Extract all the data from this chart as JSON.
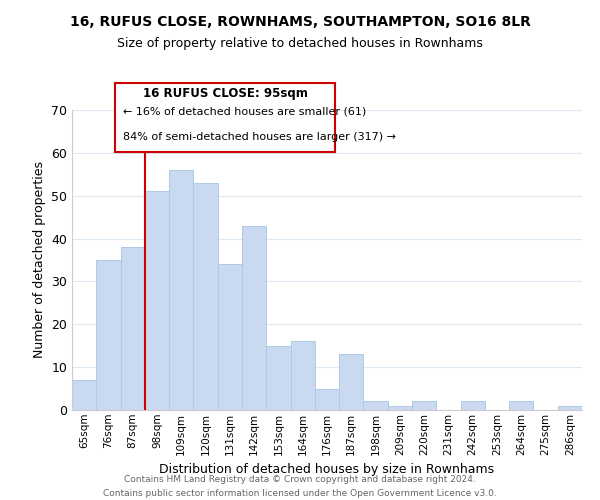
{
  "title": "16, RUFUS CLOSE, ROWNHAMS, SOUTHAMPTON, SO16 8LR",
  "subtitle": "Size of property relative to detached houses in Rownhams",
  "xlabel": "Distribution of detached houses by size in Rownhams",
  "ylabel": "Number of detached properties",
  "categories": [
    "65sqm",
    "76sqm",
    "87sqm",
    "98sqm",
    "109sqm",
    "120sqm",
    "131sqm",
    "142sqm",
    "153sqm",
    "164sqm",
    "176sqm",
    "187sqm",
    "198sqm",
    "209sqm",
    "220sqm",
    "231sqm",
    "242sqm",
    "253sqm",
    "264sqm",
    "275sqm",
    "286sqm"
  ],
  "values": [
    7,
    35,
    38,
    51,
    56,
    53,
    34,
    43,
    15,
    16,
    5,
    13,
    2,
    1,
    2,
    0,
    2,
    0,
    2,
    0,
    1
  ],
  "bar_color": "#c8d9f0",
  "bar_edge_color": "#b0c8e8",
  "vline_index": 3,
  "vline_color": "#cc0000",
  "ylim": [
    0,
    70
  ],
  "yticks": [
    0,
    10,
    20,
    30,
    40,
    50,
    60,
    70
  ],
  "annotation_title": "16 RUFUS CLOSE: 95sqm",
  "annotation_line1": "← 16% of detached houses are smaller (61)",
  "annotation_line2": "84% of semi-detached houses are larger (317) →",
  "annotation_box_color": "#ffffff",
  "annotation_box_edgecolor": "#cc0000",
  "footer_line1": "Contains HM Land Registry data © Crown copyright and database right 2024.",
  "footer_line2": "Contains public sector information licensed under the Open Government Licence v3.0.",
  "background_color": "#ffffff",
  "grid_color": "#dde8f5"
}
